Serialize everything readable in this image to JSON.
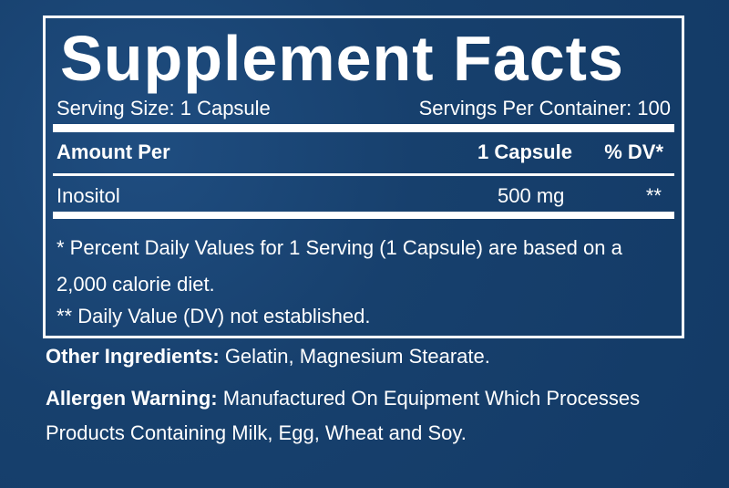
{
  "title": "Supplement Facts",
  "serving_size": "Serving Size: 1 Capsule",
  "servings_per_container": "Servings Per Container: 100",
  "table": {
    "header": [
      "Amount Per",
      "1 Capsule",
      "% DV*"
    ],
    "rows": [
      [
        "Inositol",
        "500 mg",
        "**"
      ]
    ]
  },
  "footnotes": [
    "* Percent Daily Values for 1 Serving (1 Capsule) are based on a 2,000 calorie diet.",
    "** Daily Value (DV) not established."
  ],
  "other_ingredients": {
    "label": "Other Ingredients:",
    "text": "Gelatin, Magnesium Stearate."
  },
  "allergen_warning": {
    "label": "Allergen Warning:",
    "text": "Manufactured On Equipment Which Processes Products Containing Milk, Egg, Wheat and Soy."
  }
}
